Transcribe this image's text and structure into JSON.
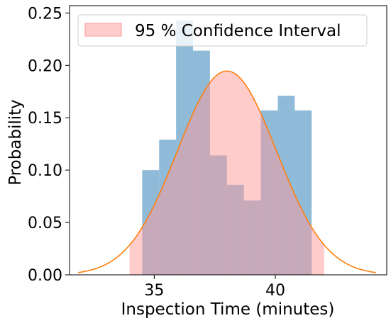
{
  "chart_data": {
    "type": "bar",
    "xlabel": "Inspection Time (minutes)",
    "ylabel": "Probability",
    "xlim": [
      31.5,
      44.6
    ],
    "ylim": [
      0,
      0.257
    ],
    "xticks": [
      35,
      40
    ],
    "xtick_labels": [
      "35",
      "40"
    ],
    "yticks": [
      0,
      0.05,
      0.1,
      0.15,
      0.2,
      0.25
    ],
    "ytick_labels": [
      "0.00",
      "0.05",
      "0.10",
      "0.15",
      "0.20",
      "0.25"
    ],
    "grid": false,
    "legend_position": "top-left",
    "histogram": {
      "color": "#1f77b4",
      "bins": [
        {
          "x0": 34.5,
          "x1": 35.2,
          "value": 0.1
        },
        {
          "x0": 35.2,
          "x1": 35.9,
          "value": 0.129
        },
        {
          "x0": 35.9,
          "x1": 36.6,
          "value": 0.243
        },
        {
          "x0": 36.6,
          "x1": 37.3,
          "value": 0.214
        },
        {
          "x0": 37.3,
          "x1": 38.0,
          "value": 0.114
        },
        {
          "x0": 38.0,
          "x1": 38.7,
          "value": 0.086
        },
        {
          "x0": 38.7,
          "x1": 39.4,
          "value": 0.071
        },
        {
          "x0": 39.4,
          "x1": 40.1,
          "value": 0.157
        },
        {
          "x0": 40.1,
          "x1": 40.8,
          "value": 0.171
        },
        {
          "x0": 40.8,
          "x1": 41.5,
          "value": 0.157
        }
      ]
    },
    "normal_curve": {
      "color": "#ff7f0e",
      "mean": 38.0,
      "std": 2.05,
      "x_range": [
        31.85,
        44.15
      ]
    },
    "confidence_interval": {
      "name": "95 % Confidence Interval",
      "color": "#ff9999",
      "x_range": [
        33.98,
        42.02
      ]
    }
  }
}
